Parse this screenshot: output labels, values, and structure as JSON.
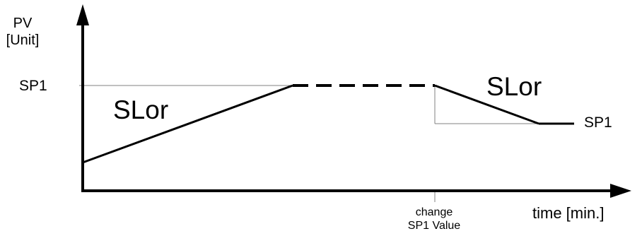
{
  "diagram": {
    "y_axis_label_line1": "PV",
    "y_axis_label_line2": "[Unit]",
    "x_axis_label": "time [min.]",
    "setpoint_label_left": "SP1",
    "setpoint_label_right": "SP1",
    "ramp_label_rising": "SLor",
    "ramp_label_falling": "SLor",
    "event_label_line1": "change",
    "event_label_line2": "SP1 Value"
  },
  "colors": {
    "line": "#000000",
    "guide": "#808080",
    "background": "#ffffff"
  }
}
